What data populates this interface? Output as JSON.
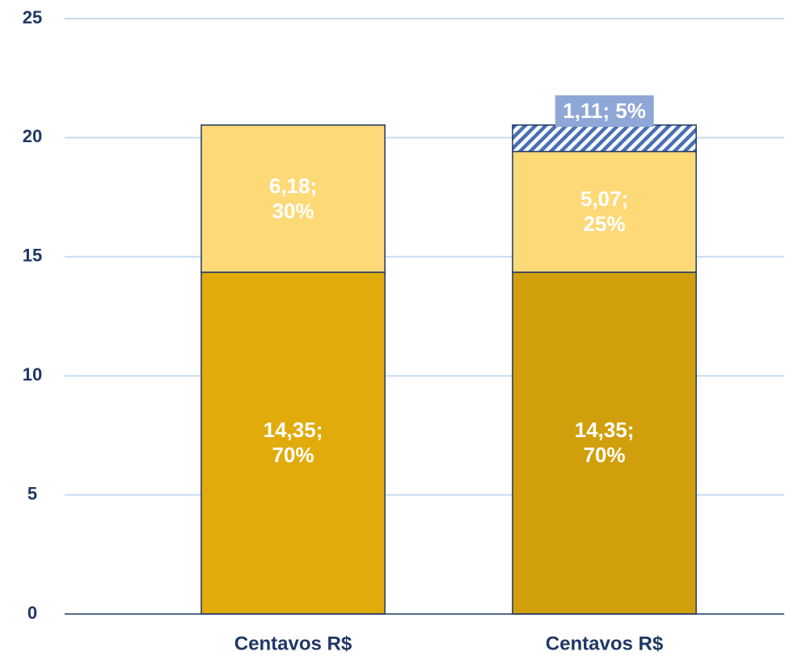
{
  "chart_data": {
    "type": "stacked_bar",
    "categories": [
      "Centavos R$",
      "Centavos R$"
    ],
    "series": [
      {
        "colors": [
          "#E1AB0C",
          "#D19F0B"
        ],
        "values": [
          14.35,
          14.35
        ],
        "value_labels": [
          "14,35; 70%",
          "14,35; 70%"
        ]
      },
      {
        "color": "#FDD978",
        "values": [
          6.18,
          5.07
        ],
        "value_labels": [
          "6,18; 30%",
          "5,07; 25%"
        ]
      },
      {
        "color": "#4A6FB5",
        "hatch": true,
        "values": [
          null,
          1.11
        ],
        "value_labels": [
          null,
          "1,11; 5%"
        ]
      }
    ],
    "ylim": [
      0,
      25
    ],
    "yticks": [
      0,
      5,
      10,
      15,
      20,
      25
    ],
    "grid": true
  }
}
